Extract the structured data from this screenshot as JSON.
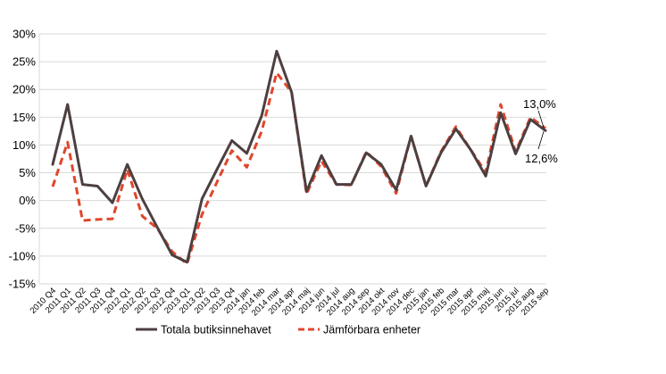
{
  "chart_data": {
    "type": "line",
    "title": "",
    "xlabel": "",
    "ylabel": "",
    "ylim": [
      -15,
      30
    ],
    "yticks": [
      -15,
      -10,
      -5,
      0,
      5,
      10,
      15,
      20,
      25,
      30
    ],
    "ytick_labels": [
      "-15%",
      "-10%",
      "-5%",
      "0%",
      "5%",
      "10%",
      "15%",
      "20%",
      "25%",
      "30%"
    ],
    "grid": true,
    "legend_position": "bottom",
    "categories": [
      "2010 Q4",
      "2011 Q1",
      "2011 Q2",
      "2011 Q3",
      "2011 Q4",
      "2012 Q1",
      "2012 Q2",
      "2012 Q3",
      "2012 Q4",
      "2013 Q1",
      "2013 Q2",
      "2013 Q3",
      "2013 Q4",
      "2014 jan",
      "2014 feb",
      "2014 mar",
      "2014 apr",
      "2014 maj",
      "2014 jun",
      "2014 jul",
      "2014 aug",
      "2014 sep",
      "2014 okt",
      "2014 nov",
      "2014 dec",
      "2015 jan",
      "2015 feb",
      "2015 mar",
      "2015 apr",
      "2015 maj",
      "2015 jun",
      "2015 jul",
      "2015 aug",
      "2015 sep"
    ],
    "series": [
      {
        "name": "Totala butiksinnehavet",
        "color": "#4d3f40",
        "style": "solid",
        "values": [
          6.5,
          17.3,
          2.9,
          2.6,
          -0.4,
          6.5,
          0.3,
          -4.8,
          -9.8,
          -11.1,
          0.3,
          5.6,
          10.8,
          8.5,
          15.3,
          26.9,
          19.5,
          1.6,
          8.1,
          2.9,
          2.9,
          8.6,
          6.5,
          1.9,
          11.6,
          2.6,
          8.6,
          12.9,
          9.1,
          4.4,
          15.8,
          8.4,
          14.6,
          12.6
        ]
      },
      {
        "name": "Jämförbara enheter",
        "color": "#e0462b",
        "style": "dashed",
        "values": [
          2.5,
          10.5,
          -3.6,
          -3.4,
          -3.3,
          5.6,
          -2.8,
          -5.0,
          -9.2,
          -11.4,
          -2.5,
          3.3,
          9.0,
          6.0,
          12.5,
          23.0,
          19.5,
          1.2,
          7.1,
          2.9,
          2.8,
          8.8,
          6.1,
          1.3,
          11.6,
          2.6,
          8.8,
          13.3,
          9.1,
          5.1,
          17.3,
          8.8,
          15.0,
          13.0
        ]
      }
    ],
    "annotations": [
      {
        "text": "13,0%",
        "series": "Jämförbara enheter",
        "category": "2015 sep"
      },
      {
        "text": "12,6%",
        "series": "Totala butiksinnehavet",
        "category": "2015 sep"
      }
    ]
  },
  "legend": {
    "items": [
      {
        "label": "Totala butiksinnehavet",
        "color": "#4d3f40",
        "style": "solid"
      },
      {
        "label": "Jämförbara enheter",
        "color": "#e0462b",
        "style": "dashed"
      }
    ]
  }
}
